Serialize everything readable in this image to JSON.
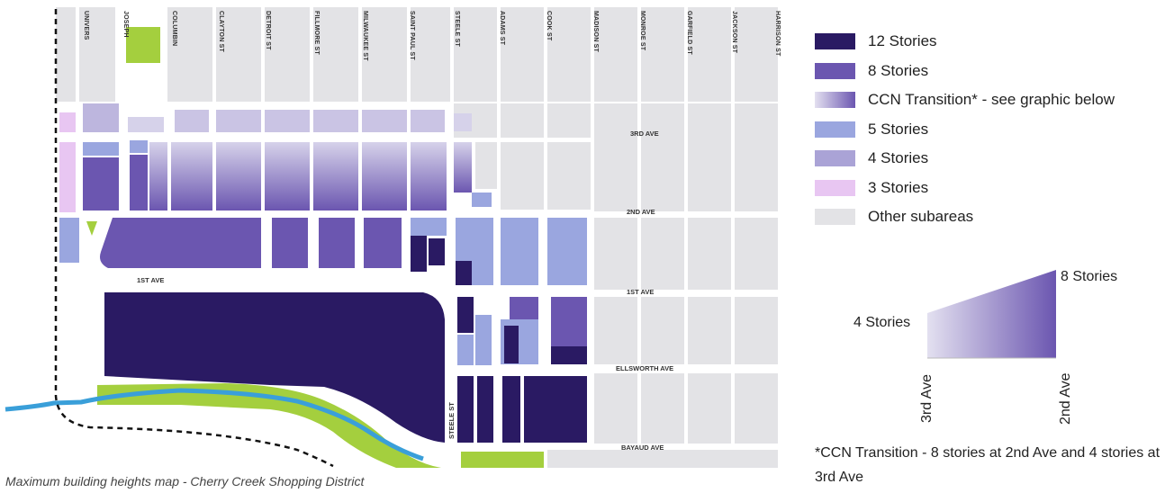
{
  "colors": {
    "stories_12": "#2a1a63",
    "stories_8": "#6b56b0",
    "stories_5": "#9aa6df",
    "stories_4": "#aaa3d6",
    "stories_3": "#e8c6f2",
    "other": "#e3e3e6",
    "park": "#a4cf3e",
    "creek": "#3a9fd9"
  },
  "map": {
    "streets_vertical": [
      "UNIVERS",
      "JOSEPH",
      "COLUMBIN",
      "CLAYTON ST",
      "DETROIT ST",
      "FILLMORE ST",
      "MILWAUKEE ST",
      "SAINT PAUL ST",
      "STEELE ST",
      "ADAMS ST",
      "COOK ST",
      "MADISON ST",
      "MONROE ST",
      "GARFIELD ST",
      "JACKSON ST",
      "HARRISON ST"
    ],
    "streets_horizontal": {
      "third_ave": "3RD AVE",
      "second_ave": "2ND AVE",
      "first_ave_west": "1ST AVE",
      "first_ave_east": "1ST AVE",
      "ellsworth_ave": "ELLSWORTH AVE",
      "bayaud_ave": "BAYAUD AVE",
      "steele_st_rotated": "STEELE ST"
    },
    "caption": "Maximum building heights map - Cherry Creek Shopping District"
  },
  "legend": {
    "items": [
      {
        "label": "12 Stories",
        "color": "#2a1a63"
      },
      {
        "label": "8 Stories",
        "color": "#6b56b0"
      },
      {
        "label": "CCN Transition* - see graphic below",
        "color": "gradient"
      },
      {
        "label": "5 Stories",
        "color": "#9aa6df"
      },
      {
        "label": "4 Stories",
        "color": "#aaa3d6"
      },
      {
        "label": "3 Stories",
        "color": "#e8c6f2"
      },
      {
        "label": "Other subareas",
        "color": "#e3e3e6"
      }
    ]
  },
  "transition_diagram": {
    "high_label": "8 Stories",
    "low_label": "4 Stories",
    "left_axis_label": "3rd Ave",
    "right_axis_label": "2nd Ave",
    "low_value_stories": 4,
    "high_value_stories": 8
  },
  "footnote": "*CCN Transition - 8 stories at 2nd Ave and 4 stories at 3rd Ave"
}
